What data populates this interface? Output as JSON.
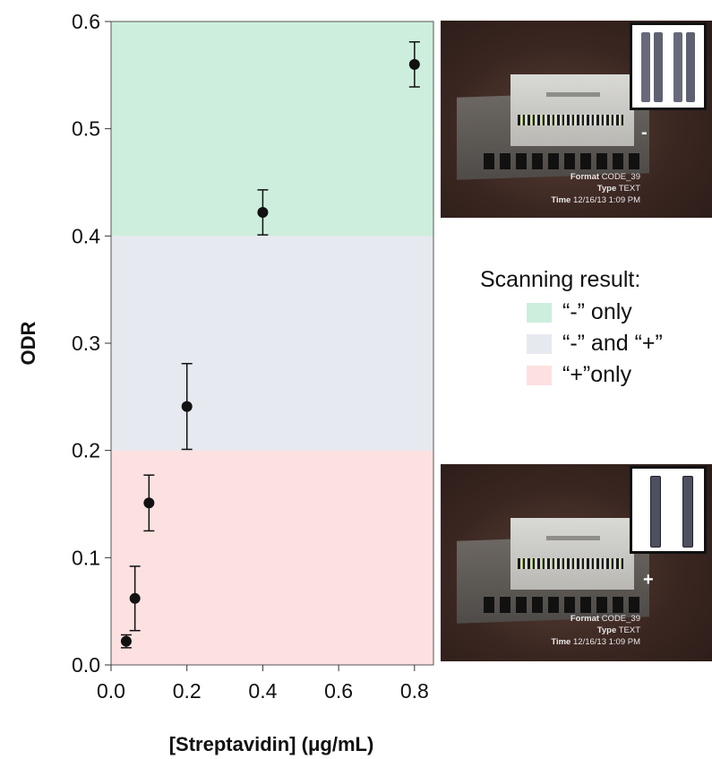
{
  "chart_data": {
    "type": "scatter",
    "xlabel": "[Streptavidin] (μg/mL)",
    "ylabel": "ODR",
    "xlim": [
      0.0,
      0.85
    ],
    "ylim": [
      0.0,
      0.6
    ],
    "x_ticks": [
      0.0,
      0.2,
      0.4,
      0.6,
      0.8
    ],
    "x_tick_labels": [
      "0.0",
      "0.2",
      "0.4",
      "0.6",
      "0.8"
    ],
    "y_ticks": [
      0.0,
      0.1,
      0.2,
      0.3,
      0.4,
      0.5,
      0.6
    ],
    "y_tick_labels": [
      "0.0",
      "0.1",
      "0.2",
      "0.3",
      "0.4",
      "0.5",
      "0.6"
    ],
    "grid": false,
    "bands": [
      {
        "from": 0.4,
        "to": 0.6,
        "color": "#cdeedd",
        "label": "“-” only"
      },
      {
        "from": 0.2,
        "to": 0.4,
        "color": "#e6e9ef",
        "label": "“-” and “+”"
      },
      {
        "from": 0.0,
        "to": 0.2,
        "color": "#fde1e1",
        "label": "“+”only"
      }
    ],
    "points": [
      {
        "x": 0.04,
        "y": 0.022,
        "err": 0.006
      },
      {
        "x": 0.063,
        "y": 0.062,
        "err": 0.03
      },
      {
        "x": 0.1,
        "y": 0.151,
        "err": 0.026
      },
      {
        "x": 0.2,
        "y": 0.241,
        "err": 0.04
      },
      {
        "x": 0.4,
        "y": 0.422,
        "err": 0.021
      },
      {
        "x": 0.8,
        "y": 0.56,
        "err": 0.021
      }
    ],
    "point_color": "#111111",
    "legend": {
      "title": "Scanning result:",
      "placement": "right"
    }
  },
  "photos": [
    {
      "name": "negative-scan-photo",
      "sign": "-",
      "meta": [
        {
          "key": "Format",
          "value": "CODE_39"
        },
        {
          "key": "Type",
          "value": "TEXT"
        },
        {
          "key": "Time",
          "value": "12/16/13 1:09 PM"
        }
      ]
    },
    {
      "name": "positive-scan-photo",
      "sign": "+",
      "meta": [
        {
          "key": "Format",
          "value": "CODE_39"
        },
        {
          "key": "Type",
          "value": "TEXT"
        },
        {
          "key": "Time",
          "value": "12/16/13 1:09 PM"
        }
      ]
    }
  ]
}
